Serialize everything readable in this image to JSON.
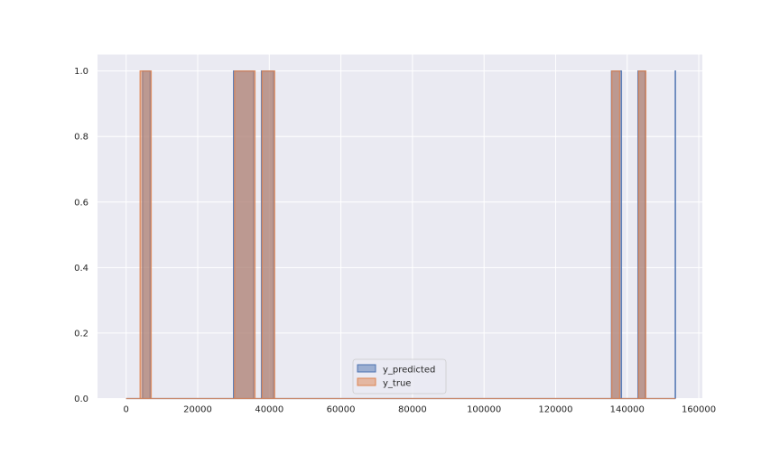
{
  "chart_data": {
    "type": "area",
    "title": "",
    "xlabel": "",
    "ylabel": "",
    "xlim": [
      -8000,
      161000
    ],
    "ylim": [
      0,
      1.05
    ],
    "grid": true,
    "legend_location": "bottom-center",
    "x_ticks": [
      0,
      20000,
      40000,
      60000,
      80000,
      100000,
      120000,
      140000,
      160000
    ],
    "x_tick_labels": [
      "0",
      "20000",
      "40000",
      "60000",
      "80000",
      "100000",
      "120000",
      "140000",
      "160000"
    ],
    "y_ticks": [
      0.0,
      0.2,
      0.4,
      0.6,
      0.8,
      1.0
    ],
    "y_tick_labels": [
      "0.0",
      "0.2",
      "0.4",
      "0.6",
      "0.8",
      "1.0"
    ],
    "series": [
      {
        "name": "y_predicted",
        "color": "#4c72b0",
        "segments": [
          [
            4600,
            6700
          ],
          [
            30000,
            35600
          ],
          [
            37800,
            41200
          ],
          [
            135600,
            138400
          ],
          [
            143000,
            145000
          ],
          [
            153400,
            153500
          ]
        ]
      },
      {
        "name": "y_true",
        "color": "#dd8452",
        "segments": [
          [
            3900,
            7000
          ],
          [
            30300,
            36000
          ],
          [
            38000,
            41500
          ],
          [
            135700,
            137900
          ],
          [
            143200,
            145200
          ]
        ]
      }
    ],
    "x_range_baseline": [
      0,
      153500
    ]
  }
}
